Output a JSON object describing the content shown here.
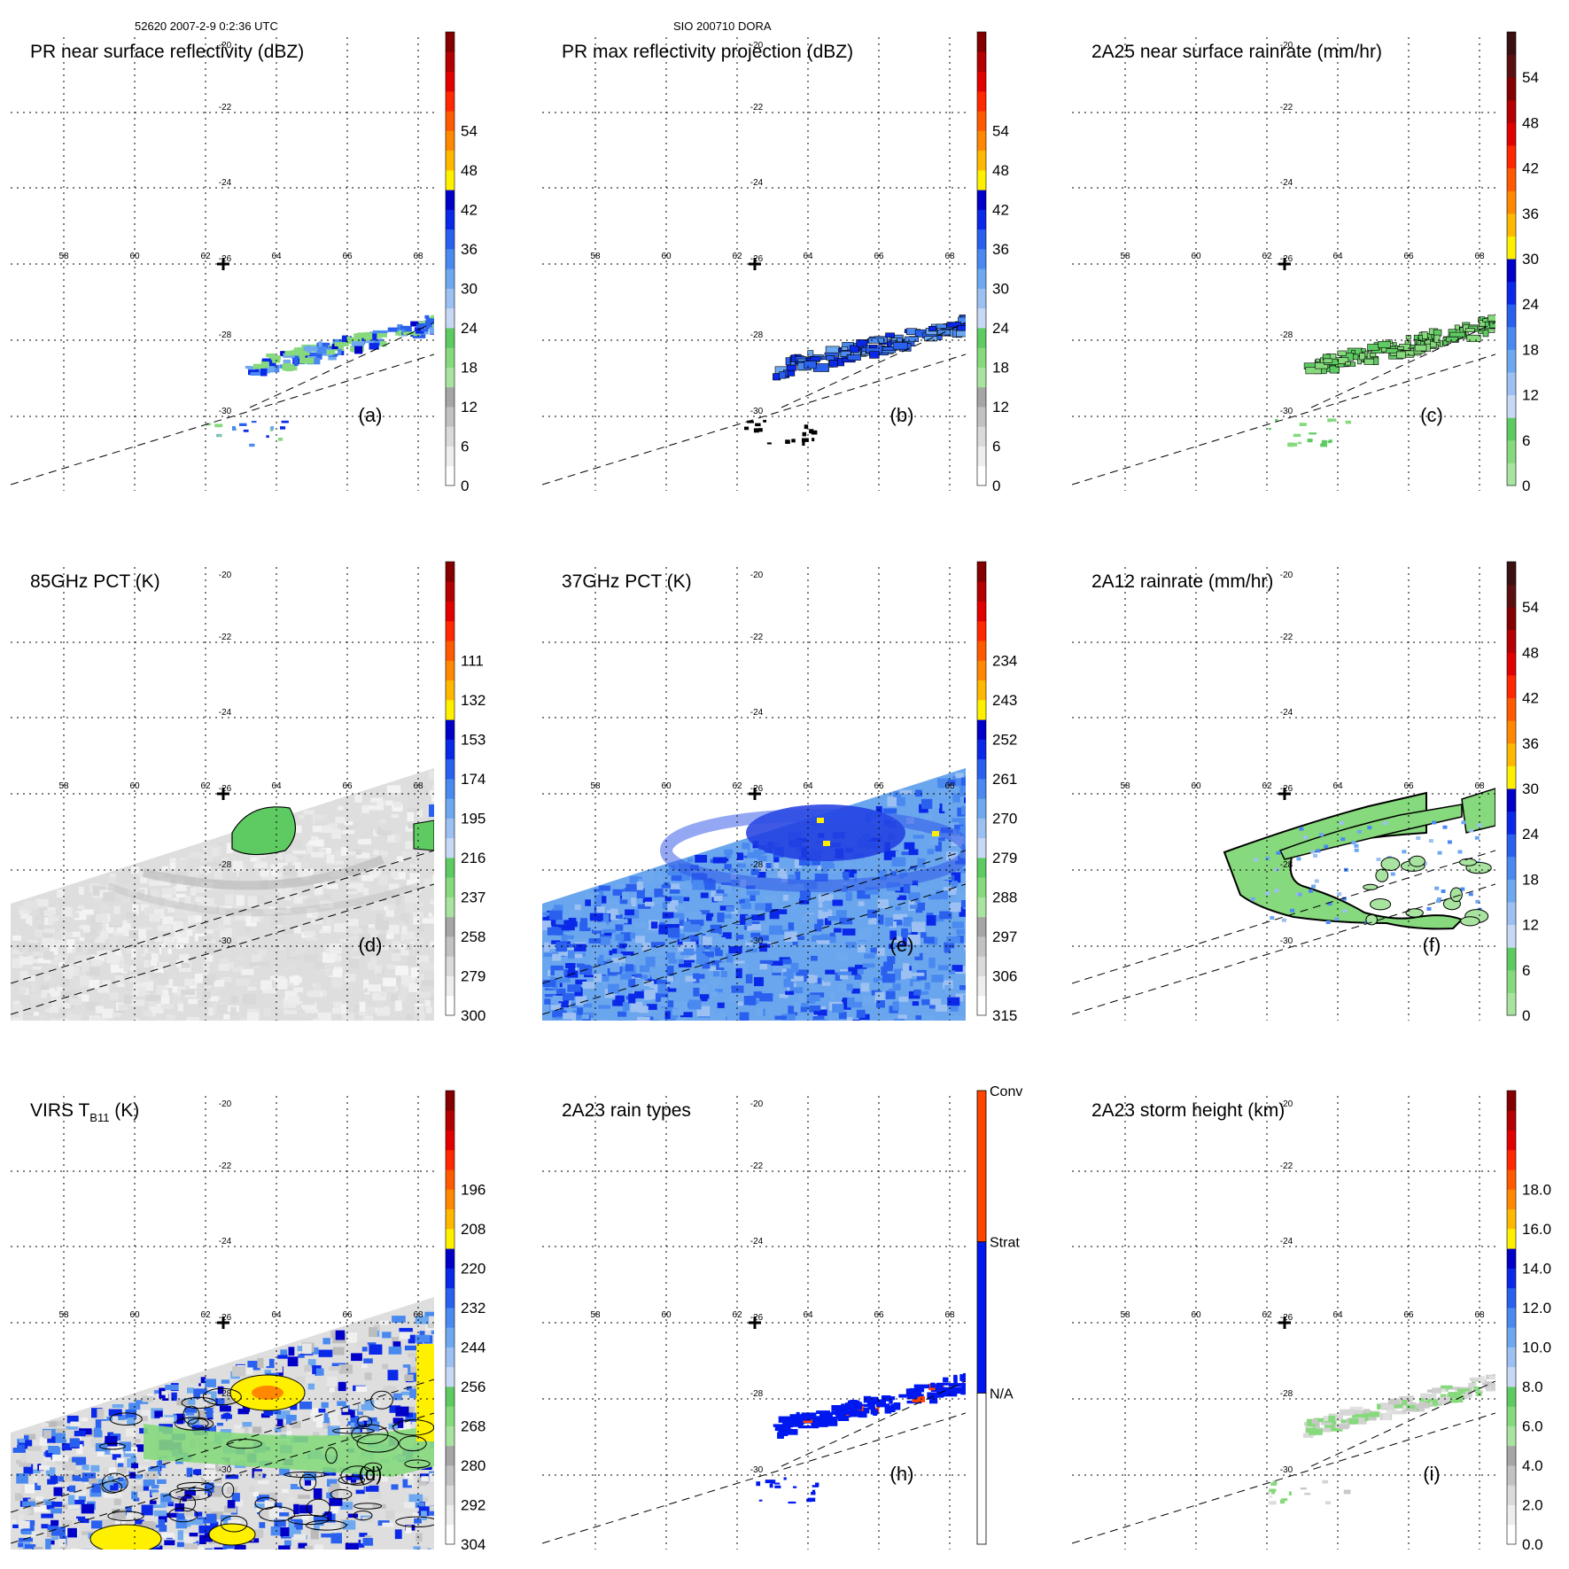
{
  "header": {
    "left": "52620 2007-2-9 0:2:36 UTC",
    "center": "SIO 200710 DORA"
  },
  "colors": {
    "gray": [
      "#ffffff",
      "#eeeeee",
      "#dadada",
      "#c2c2c2",
      "#a6a6a6"
    ],
    "green": [
      "#a8e4a0",
      "#86d97c",
      "#5ecb62"
    ],
    "blue": [
      "#c8d8f4",
      "#9cc0f2",
      "#6ea8ee",
      "#4a8af0",
      "#2a60ee",
      "#0a28e8",
      "#0000c8"
    ],
    "hot": [
      "#fff000",
      "#ffb800",
      "#ff8800",
      "#ff5a00",
      "#ff2800",
      "#e00000",
      "#b40000",
      "#840000",
      "#5a1010",
      "#3a1010"
    ],
    "cross": "#000000",
    "stratiform": "#0018f0",
    "convective": "#ff4400"
  },
  "chart_data": [
    {
      "id": "a",
      "type": "heatmap",
      "title": "PR near surface reflectivity (dBZ)",
      "panel_label": "(a)",
      "colorbar": {
        "kind": "standard",
        "ticks": [
          "0",
          "6",
          "12",
          "18",
          "24",
          "30",
          "36",
          "42",
          "48",
          "54"
        ]
      },
      "lon_ticks": [
        "58",
        "60",
        "62",
        "64",
        "66",
        "68"
      ],
      "lat_ticks": [
        "-20",
        "-22",
        "-24",
        "-26",
        "-28",
        "-30"
      ],
      "center": {
        "lon": 62.5,
        "lat": -25.9
      },
      "field": "pr_sparse",
      "contours": false
    },
    {
      "id": "b",
      "type": "heatmap",
      "title": "PR max reflectivity projection (dBZ)",
      "panel_label": "(b)",
      "colorbar": {
        "kind": "standard",
        "ticks": [
          "0",
          "6",
          "12",
          "18",
          "24",
          "30",
          "36",
          "42",
          "48",
          "54"
        ]
      },
      "lon_ticks": [
        "58",
        "60",
        "62",
        "64",
        "66",
        "68"
      ],
      "lat_ticks": [
        "-20",
        "-22",
        "-24",
        "-26",
        "-28",
        "-30"
      ],
      "center": {
        "lon": 62.5,
        "lat": -25.9
      },
      "field": "pr_blob",
      "contours": true
    },
    {
      "id": "c",
      "type": "heatmap",
      "title": "2A25 near surface rainrate (mm/hr)",
      "panel_label": "(c)",
      "colorbar": {
        "kind": "rain",
        "ticks": [
          "0",
          "6",
          "12",
          "18",
          "24",
          "30",
          "36",
          "42",
          "48",
          "54"
        ]
      },
      "lon_ticks": [
        "58",
        "60",
        "62",
        "64",
        "66",
        "68"
      ],
      "lat_ticks": [
        "-20",
        "-22",
        "-24",
        "-26",
        "-28",
        "-30"
      ],
      "center": {
        "lon": 62.5,
        "lat": -25.9
      },
      "field": "rain_blob",
      "contours": true
    },
    {
      "id": "d",
      "type": "heatmap",
      "title": "85GHz PCT (K)",
      "panel_label": "(d)",
      "colorbar": {
        "kind": "standard",
        "ticks": [
          "300",
          "279",
          "258",
          "237",
          "216",
          "195",
          "174",
          "153",
          "132",
          "111"
        ]
      },
      "lon_ticks": [
        "58",
        "60",
        "62",
        "64",
        "66",
        "68"
      ],
      "lat_ticks": [
        "-20",
        "-22",
        "-24",
        "-26",
        "-28",
        "-30"
      ],
      "center": {
        "lon": 62.5,
        "lat": -25.9
      },
      "field": "pct85",
      "contours": true
    },
    {
      "id": "e",
      "type": "heatmap",
      "title": "37GHz PCT (K)",
      "panel_label": "(e)",
      "colorbar": {
        "kind": "standard",
        "ticks": [
          "315",
          "306",
          "297",
          "288",
          "279",
          "270",
          "261",
          "252",
          "243",
          "234"
        ]
      },
      "lon_ticks": [
        "58",
        "60",
        "62",
        "64",
        "66",
        "68"
      ],
      "lat_ticks": [
        "-20",
        "-22",
        "-24",
        "-26",
        "-28",
        "-30"
      ],
      "center": {
        "lon": 62.5,
        "lat": -25.9
      },
      "field": "pct37",
      "contours": false
    },
    {
      "id": "f",
      "type": "heatmap",
      "title": "2A12 rainrate (mm/hr)",
      "panel_label": "(f)",
      "colorbar": {
        "kind": "rain",
        "ticks": [
          "0",
          "6",
          "12",
          "18",
          "24",
          "30",
          "36",
          "42",
          "48",
          "54"
        ]
      },
      "lon_ticks": [
        "58",
        "60",
        "62",
        "64",
        "66",
        "68"
      ],
      "lat_ticks": [
        "-20",
        "-22",
        "-24",
        "-26",
        "-28",
        "-30"
      ],
      "center": {
        "lon": 62.5,
        "lat": -25.9
      },
      "field": "tmi_rain",
      "contours": true
    },
    {
      "id": "g",
      "type": "heatmap",
      "title": "VIRS T",
      "title_sub": "B11",
      "title_suffix": " (K)",
      "panel_label": "(d)",
      "colorbar": {
        "kind": "standard",
        "ticks": [
          "304",
          "292",
          "280",
          "268",
          "256",
          "244",
          "232",
          "220",
          "208",
          "196"
        ]
      },
      "lon_ticks": [
        "58",
        "60",
        "62",
        "64",
        "66",
        "68"
      ],
      "lat_ticks": [
        "-20",
        "-22",
        "-24",
        "-26",
        "-28",
        "-30"
      ],
      "center": {
        "lon": 62.5,
        "lat": -25.9
      },
      "field": "virs",
      "contours": true
    },
    {
      "id": "h",
      "type": "heatmap",
      "title": "2A23 rain types",
      "panel_label": "(h)",
      "colorbar": {
        "kind": "categorical",
        "categories": [
          "N/A",
          "Strat",
          "Conv"
        ]
      },
      "lon_ticks": [
        "58",
        "60",
        "62",
        "64",
        "66",
        "68"
      ],
      "lat_ticks": [
        "-20",
        "-22",
        "-24",
        "-26",
        "-28",
        "-30"
      ],
      "center": {
        "lon": 62.5,
        "lat": -25.9
      },
      "field": "raintype",
      "contours": false
    },
    {
      "id": "i",
      "type": "heatmap",
      "title": "2A23 storm height (km)",
      "panel_label": "(i)",
      "colorbar": {
        "kind": "standard",
        "ticks": [
          "0.0",
          "2.0",
          "4.0",
          "6.0",
          "8.0",
          "10.0",
          "12.0",
          "14.0",
          "16.0",
          "18.0"
        ]
      },
      "lon_ticks": [
        "58",
        "60",
        "62",
        "64",
        "66",
        "68"
      ],
      "lat_ticks": [
        "-20",
        "-22",
        "-24",
        "-26",
        "-28",
        "-30"
      ],
      "center": {
        "lon": 62.5,
        "lat": -25.9
      },
      "field": "height",
      "contours": false
    }
  ]
}
